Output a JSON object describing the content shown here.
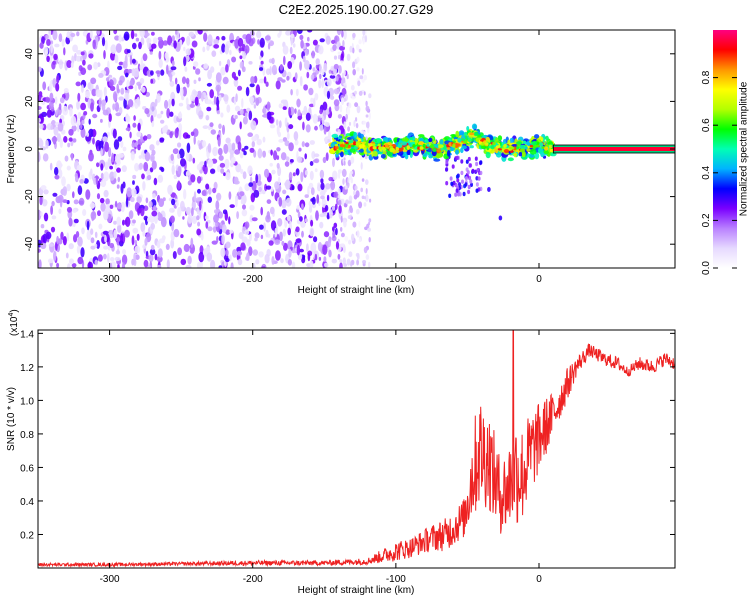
{
  "chart_data": [
    {
      "type": "heatmap",
      "title": "C2E2.2025.190.00.27.G29",
      "xlabel": "Height of straight line (km)",
      "ylabel": "Frequency (Hz)",
      "xlim": [
        -350,
        95
      ],
      "ylim": [
        -50,
        50
      ],
      "xticks": [
        -300,
        -200,
        -100,
        0
      ],
      "yticks": [
        -40,
        -20,
        0,
        20,
        40
      ],
      "colorbar": {
        "label": "Normalized spectral amplitude",
        "range": [
          0,
          1
        ],
        "ticks": [
          "0.0",
          "0.2",
          "0.4",
          "0.6",
          "0.8"
        ],
        "tick_values": [
          0,
          0.2,
          0.4,
          0.6,
          0.8
        ],
        "colormap": [
          "#ffffff",
          "#e6d9ff",
          "#b980ff",
          "#7a00ff",
          "#0000ff",
          "#00b4ff",
          "#00ffb4",
          "#00ff00",
          "#b4ff00",
          "#ffff00",
          "#ff9600",
          "#ff0000",
          "#ff0080"
        ]
      },
      "regions": [
        {
          "name": "noise",
          "x_from": -350,
          "x_to": -135,
          "freq_band": [
            -50,
            50
          ],
          "amplitude": [
            0.05,
            0.3
          ]
        },
        {
          "name": "fade",
          "x_from": -140,
          "x_to": -118,
          "freq_band": [
            -50,
            50
          ],
          "amplitude": [
            0.02,
            0.15
          ]
        },
        {
          "name": "signal-tail",
          "x_from": -65,
          "x_to": -40,
          "freq_band": [
            -20,
            -3
          ],
          "amplitude": [
            0.15,
            0.35
          ]
        },
        {
          "name": "signal",
          "x_from": -145,
          "x_to": 10,
          "freq_band": [
            -5,
            9
          ],
          "amplitude": [
            0.3,
            0.95
          ]
        },
        {
          "name": "locked-tone",
          "x_from": 10,
          "x_to": 95,
          "center_freq": 0,
          "amplitude": 0.95
        }
      ],
      "signal_center": [
        {
          "x": -145,
          "y": 1
        },
        {
          "x": -130,
          "y": 2
        },
        {
          "x": -115,
          "y": 1
        },
        {
          "x": -100,
          "y": 0
        },
        {
          "x": -90,
          "y": 2
        },
        {
          "x": -80,
          "y": 1
        },
        {
          "x": -70,
          "y": 0
        },
        {
          "x": -60,
          "y": 2
        },
        {
          "x": -50,
          "y": 4
        },
        {
          "x": -45,
          "y": 6
        },
        {
          "x": -40,
          "y": 3
        },
        {
          "x": -30,
          "y": 1
        },
        {
          "x": -20,
          "y": 0
        },
        {
          "x": -10,
          "y": 0
        },
        {
          "x": 0,
          "y": 2
        },
        {
          "x": 10,
          "y": 0
        }
      ]
    },
    {
      "type": "line",
      "xlabel": "Height of straight line (km)",
      "ylabel": "SNR (10 * v/v)",
      "y_multiplier": "(x10",
      "y_multiplier_exp": "4",
      "y_multiplier_close": ")",
      "xlim": [
        -350,
        95
      ],
      "ylim": [
        0,
        1.42
      ],
      "xticks": [
        -300,
        -200,
        -100,
        0
      ],
      "yticks": [
        "0.2",
        "0.4",
        "0.6",
        "0.8",
        "1.0",
        "1.2",
        "1.4"
      ],
      "ytick_values": [
        0.2,
        0.4,
        0.6,
        0.8,
        1.0,
        1.2,
        1.4
      ],
      "color": "#ee2222",
      "series": [
        {
          "envelope": [
            {
              "x": -350,
              "y": 0.02,
              "spread": 0.01
            },
            {
              "x": -300,
              "y": 0.02,
              "spread": 0.01
            },
            {
              "x": -250,
              "y": 0.025,
              "spread": 0.01
            },
            {
              "x": -200,
              "y": 0.03,
              "spread": 0.015
            },
            {
              "x": -150,
              "y": 0.03,
              "spread": 0.015
            },
            {
              "x": -120,
              "y": 0.04,
              "spread": 0.02
            },
            {
              "x": -100,
              "y": 0.1,
              "spread": 0.06
            },
            {
              "x": -90,
              "y": 0.12,
              "spread": 0.06
            },
            {
              "x": -75,
              "y": 0.18,
              "spread": 0.08
            },
            {
              "x": -65,
              "y": 0.2,
              "spread": 0.1
            },
            {
              "x": -52,
              "y": 0.3,
              "spread": 0.12
            },
            {
              "x": -48,
              "y": 0.5,
              "spread": 0.25
            },
            {
              "x": -42,
              "y": 0.7,
              "spread": 0.35
            },
            {
              "x": -35,
              "y": 0.65,
              "spread": 0.3
            },
            {
              "x": -28,
              "y": 0.45,
              "spread": 0.25
            },
            {
              "x": -22,
              "y": 0.45,
              "spread": 0.25
            },
            {
              "x": -18,
              "y": 0.6,
              "spread": 0.35
            },
            {
              "x": -12,
              "y": 0.55,
              "spread": 0.3
            },
            {
              "x": -5,
              "y": 0.7,
              "spread": 0.25
            },
            {
              "x": 2,
              "y": 0.8,
              "spread": 0.2
            },
            {
              "x": 12,
              "y": 0.95,
              "spread": 0.12
            },
            {
              "x": 20,
              "y": 1.1,
              "spread": 0.1
            },
            {
              "x": 26,
              "y": 1.2,
              "spread": 0.06
            },
            {
              "x": 35,
              "y": 1.3,
              "spread": 0.04
            },
            {
              "x": 45,
              "y": 1.25,
              "spread": 0.04
            },
            {
              "x": 55,
              "y": 1.22,
              "spread": 0.04
            },
            {
              "x": 62,
              "y": 1.17,
              "spread": 0.03
            },
            {
              "x": 70,
              "y": 1.22,
              "spread": 0.04
            },
            {
              "x": 80,
              "y": 1.2,
              "spread": 0.04
            },
            {
              "x": 88,
              "y": 1.25,
              "spread": 0.04
            },
            {
              "x": 95,
              "y": 1.22,
              "spread": 0.04
            }
          ],
          "peak": {
            "x": -18,
            "y": 1.42
          }
        }
      ]
    }
  ]
}
